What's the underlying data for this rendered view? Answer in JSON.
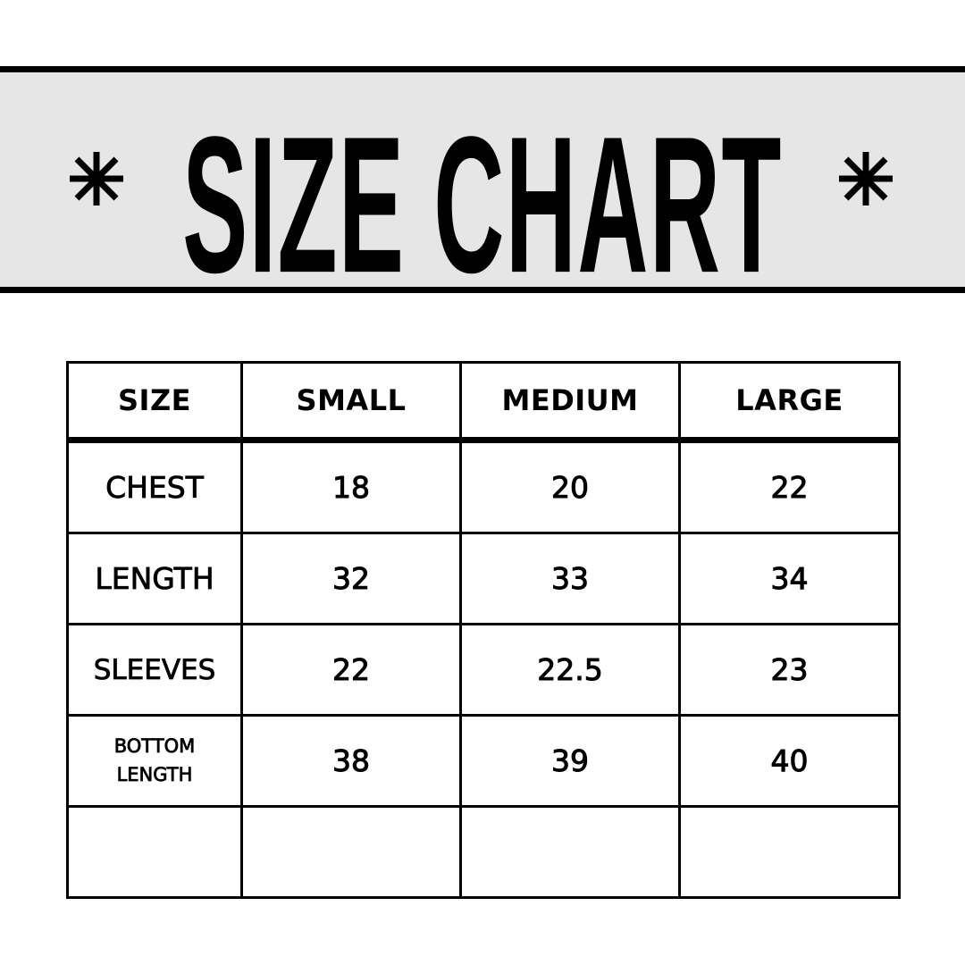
{
  "banner": {
    "title": "SIZE CHART",
    "left_icon": "asterisk-icon",
    "right_icon": "asterisk-icon",
    "background_color": "#e6e6e6"
  },
  "table": {
    "headers": [
      "SIZE",
      "SMALL",
      "MEDIUM",
      "LARGE"
    ],
    "rows": [
      {
        "label": "CHEST",
        "values": [
          "18",
          "20",
          "22"
        ]
      },
      {
        "label": "LENGTH",
        "values": [
          "32",
          "33",
          "34"
        ]
      },
      {
        "label": "SLEEVES",
        "values": [
          "22",
          "22.5",
          "23"
        ]
      },
      {
        "label": "BOTTOM LENGTH",
        "label_line1": "BOTTOM",
        "label_line2": "LENGTH",
        "values": [
          "38",
          "39",
          "40"
        ]
      },
      {
        "label": "",
        "values": [
          "",
          "",
          ""
        ]
      }
    ]
  }
}
